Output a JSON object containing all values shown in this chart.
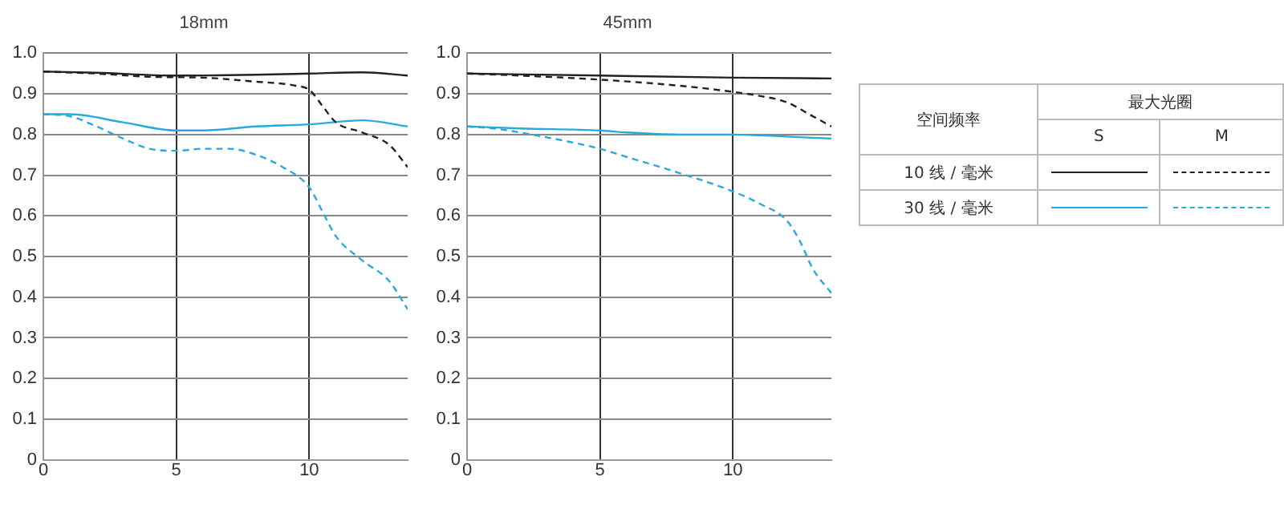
{
  "chart_data": [
    {
      "type": "line",
      "title": "18mm",
      "xlim": [
        0,
        13.7
      ],
      "xticks": [
        0,
        5,
        10
      ],
      "ylim": [
        0,
        1
      ],
      "yticks": [
        0,
        0.1,
        0.2,
        0.3,
        0.4,
        0.5,
        0.6,
        0.7,
        0.8,
        0.9,
        {
          "value": 1,
          "label": "1.0"
        }
      ],
      "grid": true,
      "marker": "none",
      "series": [
        {
          "color": "#222222",
          "line_style": "solid",
          "x": [
            0,
            2,
            5,
            8,
            10,
            12,
            13.7
          ],
          "values": [
            0.955,
            0.952,
            0.945,
            0.947,
            0.95,
            0.953,
            0.945
          ]
        },
        {
          "color": "#222222",
          "line_style": "dashed",
          "x": [
            0,
            2,
            4,
            6,
            8,
            9,
            9.5,
            10,
            10.5,
            11,
            12,
            13,
            13.7
          ],
          "values": [
            0.955,
            0.95,
            0.942,
            0.94,
            0.93,
            0.925,
            0.92,
            0.91,
            0.87,
            0.83,
            0.805,
            0.775,
            0.72
          ]
        },
        {
          "color": "#29a8e0",
          "line_style": "solid",
          "x": [
            0,
            1,
            3,
            5,
            6,
            8,
            10,
            12,
            13.7
          ],
          "values": [
            0.85,
            0.85,
            0.83,
            0.81,
            0.81,
            0.82,
            0.825,
            0.835,
            0.82
          ]
        },
        {
          "color": "#29a8e0",
          "line_style": "dashed",
          "x": [
            0,
            1,
            2,
            3,
            4,
            5,
            6,
            7,
            8,
            9,
            10,
            10.5,
            11,
            12,
            13,
            13.7
          ],
          "values": [
            0.85,
            0.845,
            0.82,
            0.79,
            0.765,
            0.76,
            0.765,
            0.765,
            0.75,
            0.72,
            0.67,
            0.61,
            0.55,
            0.49,
            0.44,
            0.37
          ]
        }
      ]
    },
    {
      "type": "line",
      "title": "45mm",
      "xlim": [
        0,
        13.7
      ],
      "xticks": [
        0,
        5,
        10
      ],
      "ylim": [
        0,
        1
      ],
      "yticks": [
        0,
        0.1,
        0.2,
        0.3,
        0.4,
        0.5,
        0.6,
        0.7,
        0.8,
        0.9,
        {
          "value": 1,
          "label": "1.0"
        }
      ],
      "grid": true,
      "marker": "none",
      "annotations": [
        "空间频率",
        "最大光圈",
        "S",
        "M",
        "10 线 / 毫米",
        "30 线 / 毫米"
      ],
      "series": [
        {
          "color": "#222222",
          "line_style": "solid",
          "x": [
            0,
            5,
            10,
            13.7
          ],
          "values": [
            0.95,
            0.945,
            0.94,
            0.938
          ]
        },
        {
          "color": "#222222",
          "line_style": "dashed",
          "x": [
            0,
            2,
            5,
            8,
            10,
            11,
            12,
            13,
            13.7
          ],
          "values": [
            0.95,
            0.945,
            0.935,
            0.92,
            0.905,
            0.895,
            0.88,
            0.845,
            0.82
          ]
        },
        {
          "color": "#29a8e0",
          "line_style": "solid",
          "x": [
            0,
            2,
            5,
            6,
            8,
            10,
            12,
            13.7
          ],
          "values": [
            0.82,
            0.815,
            0.81,
            0.805,
            0.8,
            0.8,
            0.795,
            0.79
          ]
        },
        {
          "color": "#29a8e0",
          "line_style": "dashed",
          "x": [
            0,
            1,
            2,
            4,
            5,
            6,
            8,
            10,
            11,
            12,
            12.5,
            13,
            13.7
          ],
          "values": [
            0.82,
            0.815,
            0.805,
            0.78,
            0.765,
            0.745,
            0.705,
            0.66,
            0.63,
            0.59,
            0.54,
            0.47,
            0.41
          ]
        }
      ]
    }
  ]
}
